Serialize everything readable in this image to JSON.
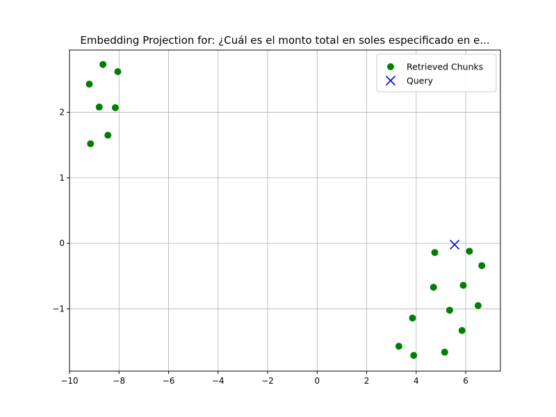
{
  "chart_data": {
    "type": "scatter",
    "title": "Embedding Projection for: ¿Cuál es el monto total en soles especificado en e...",
    "xlabel": "",
    "ylabel": "",
    "xlim": [
      -10,
      7.4
    ],
    "ylim": [
      -1.95,
      2.95
    ],
    "xticks": [
      -10,
      -8,
      -6,
      -4,
      -2,
      0,
      2,
      4,
      6
    ],
    "yticks": [
      -1,
      0,
      1,
      2
    ],
    "grid": true,
    "legend_position": "top-right",
    "series": [
      {
        "name": "Retrieved Chunks",
        "marker": "circle",
        "color": "#008000",
        "points": [
          {
            "x": -8.65,
            "y": 2.73
          },
          {
            "x": -8.05,
            "y": 2.62
          },
          {
            "x": -9.2,
            "y": 2.43
          },
          {
            "x": -8.8,
            "y": 2.08
          },
          {
            "x": -8.15,
            "y": 2.07
          },
          {
            "x": -8.45,
            "y": 1.65
          },
          {
            "x": -9.15,
            "y": 1.52
          },
          {
            "x": 6.15,
            "y": -0.12
          },
          {
            "x": 4.75,
            "y": -0.14
          },
          {
            "x": 6.65,
            "y": -0.34
          },
          {
            "x": 5.9,
            "y": -0.64
          },
          {
            "x": 4.7,
            "y": -0.67
          },
          {
            "x": 6.5,
            "y": -0.95
          },
          {
            "x": 5.35,
            "y": -1.02
          },
          {
            "x": 3.85,
            "y": -1.14
          },
          {
            "x": 5.85,
            "y": -1.33
          },
          {
            "x": 3.3,
            "y": -1.57
          },
          {
            "x": 5.15,
            "y": -1.66
          },
          {
            "x": 3.9,
            "y": -1.71
          }
        ]
      },
      {
        "name": "Query",
        "marker": "x",
        "color": "#0000ff",
        "points": [
          {
            "x": 5.55,
            "y": -0.02
          }
        ]
      }
    ]
  }
}
